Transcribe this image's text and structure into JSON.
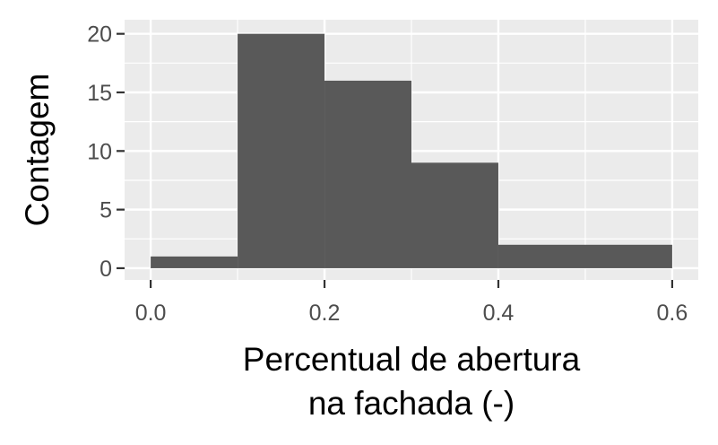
{
  "chart_data": {
    "type": "histogram",
    "title": "",
    "xlabel": [
      "Percentual de abertura",
      "na fachada (-)"
    ],
    "ylabel": "Contagem",
    "bins": [
      {
        "x0": 0.0,
        "x1": 0.1,
        "count": 1
      },
      {
        "x0": 0.1,
        "x1": 0.2,
        "count": 20
      },
      {
        "x0": 0.2,
        "x1": 0.3,
        "count": 16
      },
      {
        "x0": 0.3,
        "x1": 0.4,
        "count": 9
      },
      {
        "x0": 0.4,
        "x1": 0.6,
        "count": 2
      }
    ],
    "xlim": [
      -0.03,
      0.63
    ],
    "ylim": [
      -1,
      21.2
    ],
    "xticks": [
      0.0,
      0.2,
      0.4,
      0.6
    ],
    "xtick_labels": [
      "0.0",
      "0.2",
      "0.4",
      "0.6"
    ],
    "yticks": [
      0,
      5,
      10,
      15,
      20
    ],
    "ytick_labels": [
      "0",
      "5",
      "10",
      "15",
      "20"
    ],
    "grid": true,
    "legend": "none",
    "colors": {
      "panel": "#ebebeb",
      "grid": "#ffffff",
      "bar": "#595959",
      "tick_text": "#4d4d4d"
    }
  }
}
